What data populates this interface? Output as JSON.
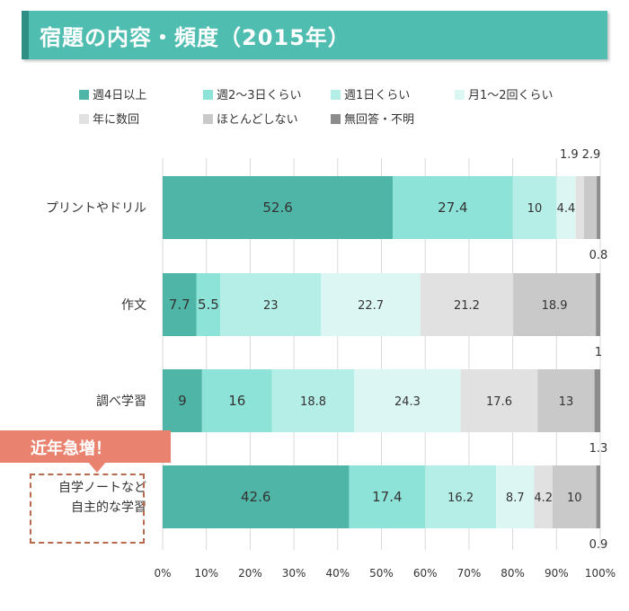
{
  "header": {
    "title": "宿題の内容・頻度（2015年）"
  },
  "callout": {
    "label": "近年急増！"
  },
  "colors": {
    "banner": "#50bdb1",
    "callout": "#e9826f",
    "callout_border": "#b8694e"
  },
  "chart_data": {
    "type": "bar",
    "orientation": "horizontal",
    "stacked": true,
    "title": "宿題の内容・頻度（2015年）",
    "categories": [
      "プリントやドリル",
      "作文",
      "調べ学習",
      "自学ノートなど自主的な学習"
    ],
    "category_lines": [
      [
        "プリントやドリル"
      ],
      [
        "作文"
      ],
      [
        "調べ学習"
      ],
      [
        "自学ノートなど",
        "自主的な学習"
      ]
    ],
    "series": [
      {
        "name": "週4日以上",
        "color": "#4fb5a6",
        "values": [
          52.6,
          7.7,
          9,
          42.6
        ]
      },
      {
        "name": "週2～3日くらい",
        "color": "#8ee3d8",
        "values": [
          27.4,
          5.5,
          16,
          17.4
        ]
      },
      {
        "name": "週1日くらい",
        "color": "#b5eee6",
        "values": [
          10,
          23,
          18.8,
          16.2
        ]
      },
      {
        "name": "月1～2回くらい",
        "color": "#dcf7f3",
        "values": [
          4.4,
          22.7,
          24.3,
          8.7
        ]
      },
      {
        "name": "年に数回",
        "color": "#e1e1e1",
        "values": [
          1.9,
          21.2,
          17.6,
          4.2
        ]
      },
      {
        "name": "ほとんどしない",
        "color": "#c9c9c9",
        "values": [
          2.9,
          18.9,
          13,
          10
        ]
      },
      {
        "name": "無回答・不明",
        "color": "#8c8c8c",
        "values": [
          0.8,
          1,
          1.3,
          0.9
        ]
      }
    ],
    "data_labels": [
      [
        "52.6",
        "27.4",
        "10",
        "4.4",
        "1.9",
        "2.9",
        "0.8"
      ],
      [
        "7.7",
        "5.5",
        "23",
        "22.7",
        "21.2",
        "18.9",
        "1"
      ],
      [
        "9",
        "16",
        "18.8",
        "24.3",
        "17.6",
        "13",
        "1.3"
      ],
      [
        "42.6",
        "17.4",
        "16.2",
        "8.7",
        "4.2",
        "10",
        "0.9"
      ]
    ],
    "outside_labels": [
      [
        {
          "series": 4,
          "text": "1.9",
          "pos": "above"
        },
        {
          "series": 5,
          "text": "2.9",
          "pos": "above"
        },
        {
          "series": 6,
          "text": "0.8",
          "pos": "below"
        }
      ],
      [
        {
          "series": 6,
          "text": "1",
          "pos": "below"
        }
      ],
      [
        {
          "series": 6,
          "text": "1.3",
          "pos": "below"
        }
      ],
      [
        {
          "series": 6,
          "text": "0.9",
          "pos": "below"
        }
      ]
    ],
    "xlim": [
      0,
      100
    ],
    "x_ticks": [
      "0%",
      "10%",
      "20%",
      "30%",
      "40%",
      "50%",
      "60%",
      "70%",
      "80%",
      "90%",
      "100%"
    ],
    "grid": true,
    "legend_position": "top"
  }
}
